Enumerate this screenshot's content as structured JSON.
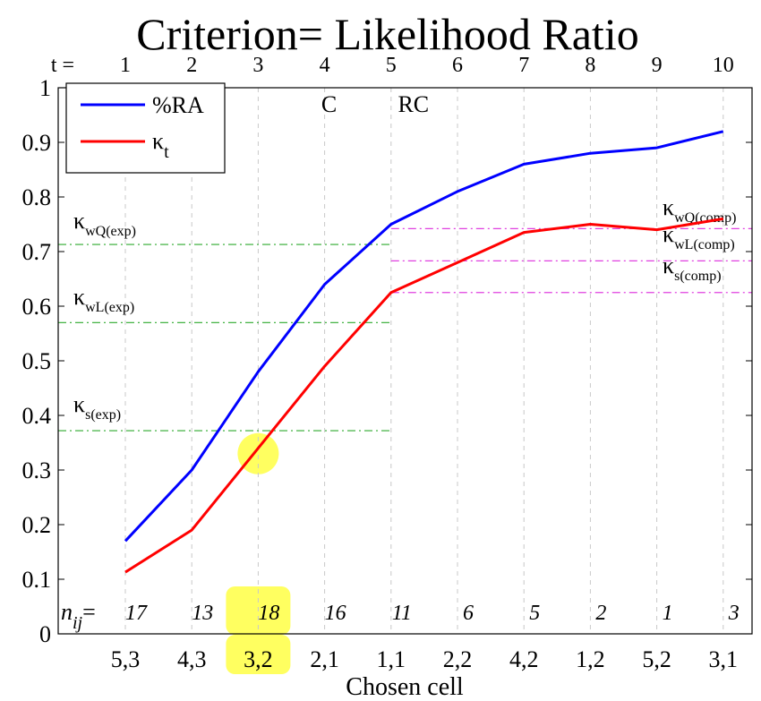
{
  "chart_data": {
    "type": "line",
    "title": "Criterion= Likelihood Ratio",
    "xlabel": "Chosen cell",
    "ylabel": "",
    "ylim": [
      0,
      1
    ],
    "yticks": [
      "0",
      "0.1",
      "0.2",
      "0.3",
      "0.4",
      "0.5",
      "0.6",
      "0.7",
      "0.8",
      "0.9",
      "1"
    ],
    "x": [
      1,
      2,
      3,
      4,
      5,
      6,
      7,
      8,
      9,
      10
    ],
    "t_label": "t =",
    "t_ticks": [
      "1",
      "2",
      "3",
      "4",
      "5",
      "6",
      "7",
      "8",
      "9",
      "10"
    ],
    "categories": [
      "5,3",
      "4,3",
      "3,2",
      "2,1",
      "1,1",
      "2,2",
      "4,2",
      "1,2",
      "5,2",
      "3,1"
    ],
    "n_label": "n",
    "n_label_sub": "ij",
    "n_label_eq": "=",
    "n_values": [
      "17",
      "13",
      "18",
      "16",
      "11",
      "6",
      "5",
      "2",
      "1",
      "3"
    ],
    "grid": "vertical dashed",
    "legend_position": "top-left",
    "series": [
      {
        "name": "%RA",
        "color": "#0000ff",
        "values": [
          0.17,
          0.3,
          0.48,
          0.64,
          0.75,
          0.81,
          0.86,
          0.88,
          0.89,
          0.92
        ]
      },
      {
        "name": "κ",
        "name_sub": "t",
        "color": "#ff0000",
        "values": [
          0.113,
          0.19,
          0.34,
          0.49,
          0.625,
          0.68,
          0.735,
          0.75,
          0.74,
          0.76
        ]
      }
    ],
    "column_annotations": [
      {
        "x": 4,
        "text": "C"
      },
      {
        "x": 5,
        "text": "RC"
      }
    ],
    "reference_lines": [
      {
        "label": "κ",
        "sub": "wQ(exp)",
        "value": 0.713,
        "x_range": [
          0,
          5
        ],
        "color": "#2eaa2e"
      },
      {
        "label": "κ",
        "sub": "wL(exp)",
        "value": 0.57,
        "x_range": [
          0,
          5
        ],
        "color": "#2eaa2e"
      },
      {
        "label": "κ",
        "sub": "s(exp)",
        "value": 0.372,
        "x_range": [
          0,
          5
        ],
        "color": "#2eaa2e"
      },
      {
        "label": "κ",
        "sub": "wQ(comp)",
        "value": 0.742,
        "x_range": [
          5,
          10.5
        ],
        "color": "#e040e0"
      },
      {
        "label": "κ",
        "sub": "wL(comp)",
        "value": 0.683,
        "x_range": [
          5,
          10.5
        ],
        "color": "#e040e0"
      },
      {
        "label": "κ",
        "sub": "s(comp)",
        "value": 0.625,
        "x_range": [
          5,
          10.5
        ],
        "color": "#e040e0"
      }
    ],
    "highlights": [
      {
        "target": "point",
        "x": 3,
        "y": 0.33
      },
      {
        "target": "n_value",
        "x": 3
      },
      {
        "target": "category",
        "x": 3
      }
    ],
    "highlight_color": "#ffff44"
  }
}
